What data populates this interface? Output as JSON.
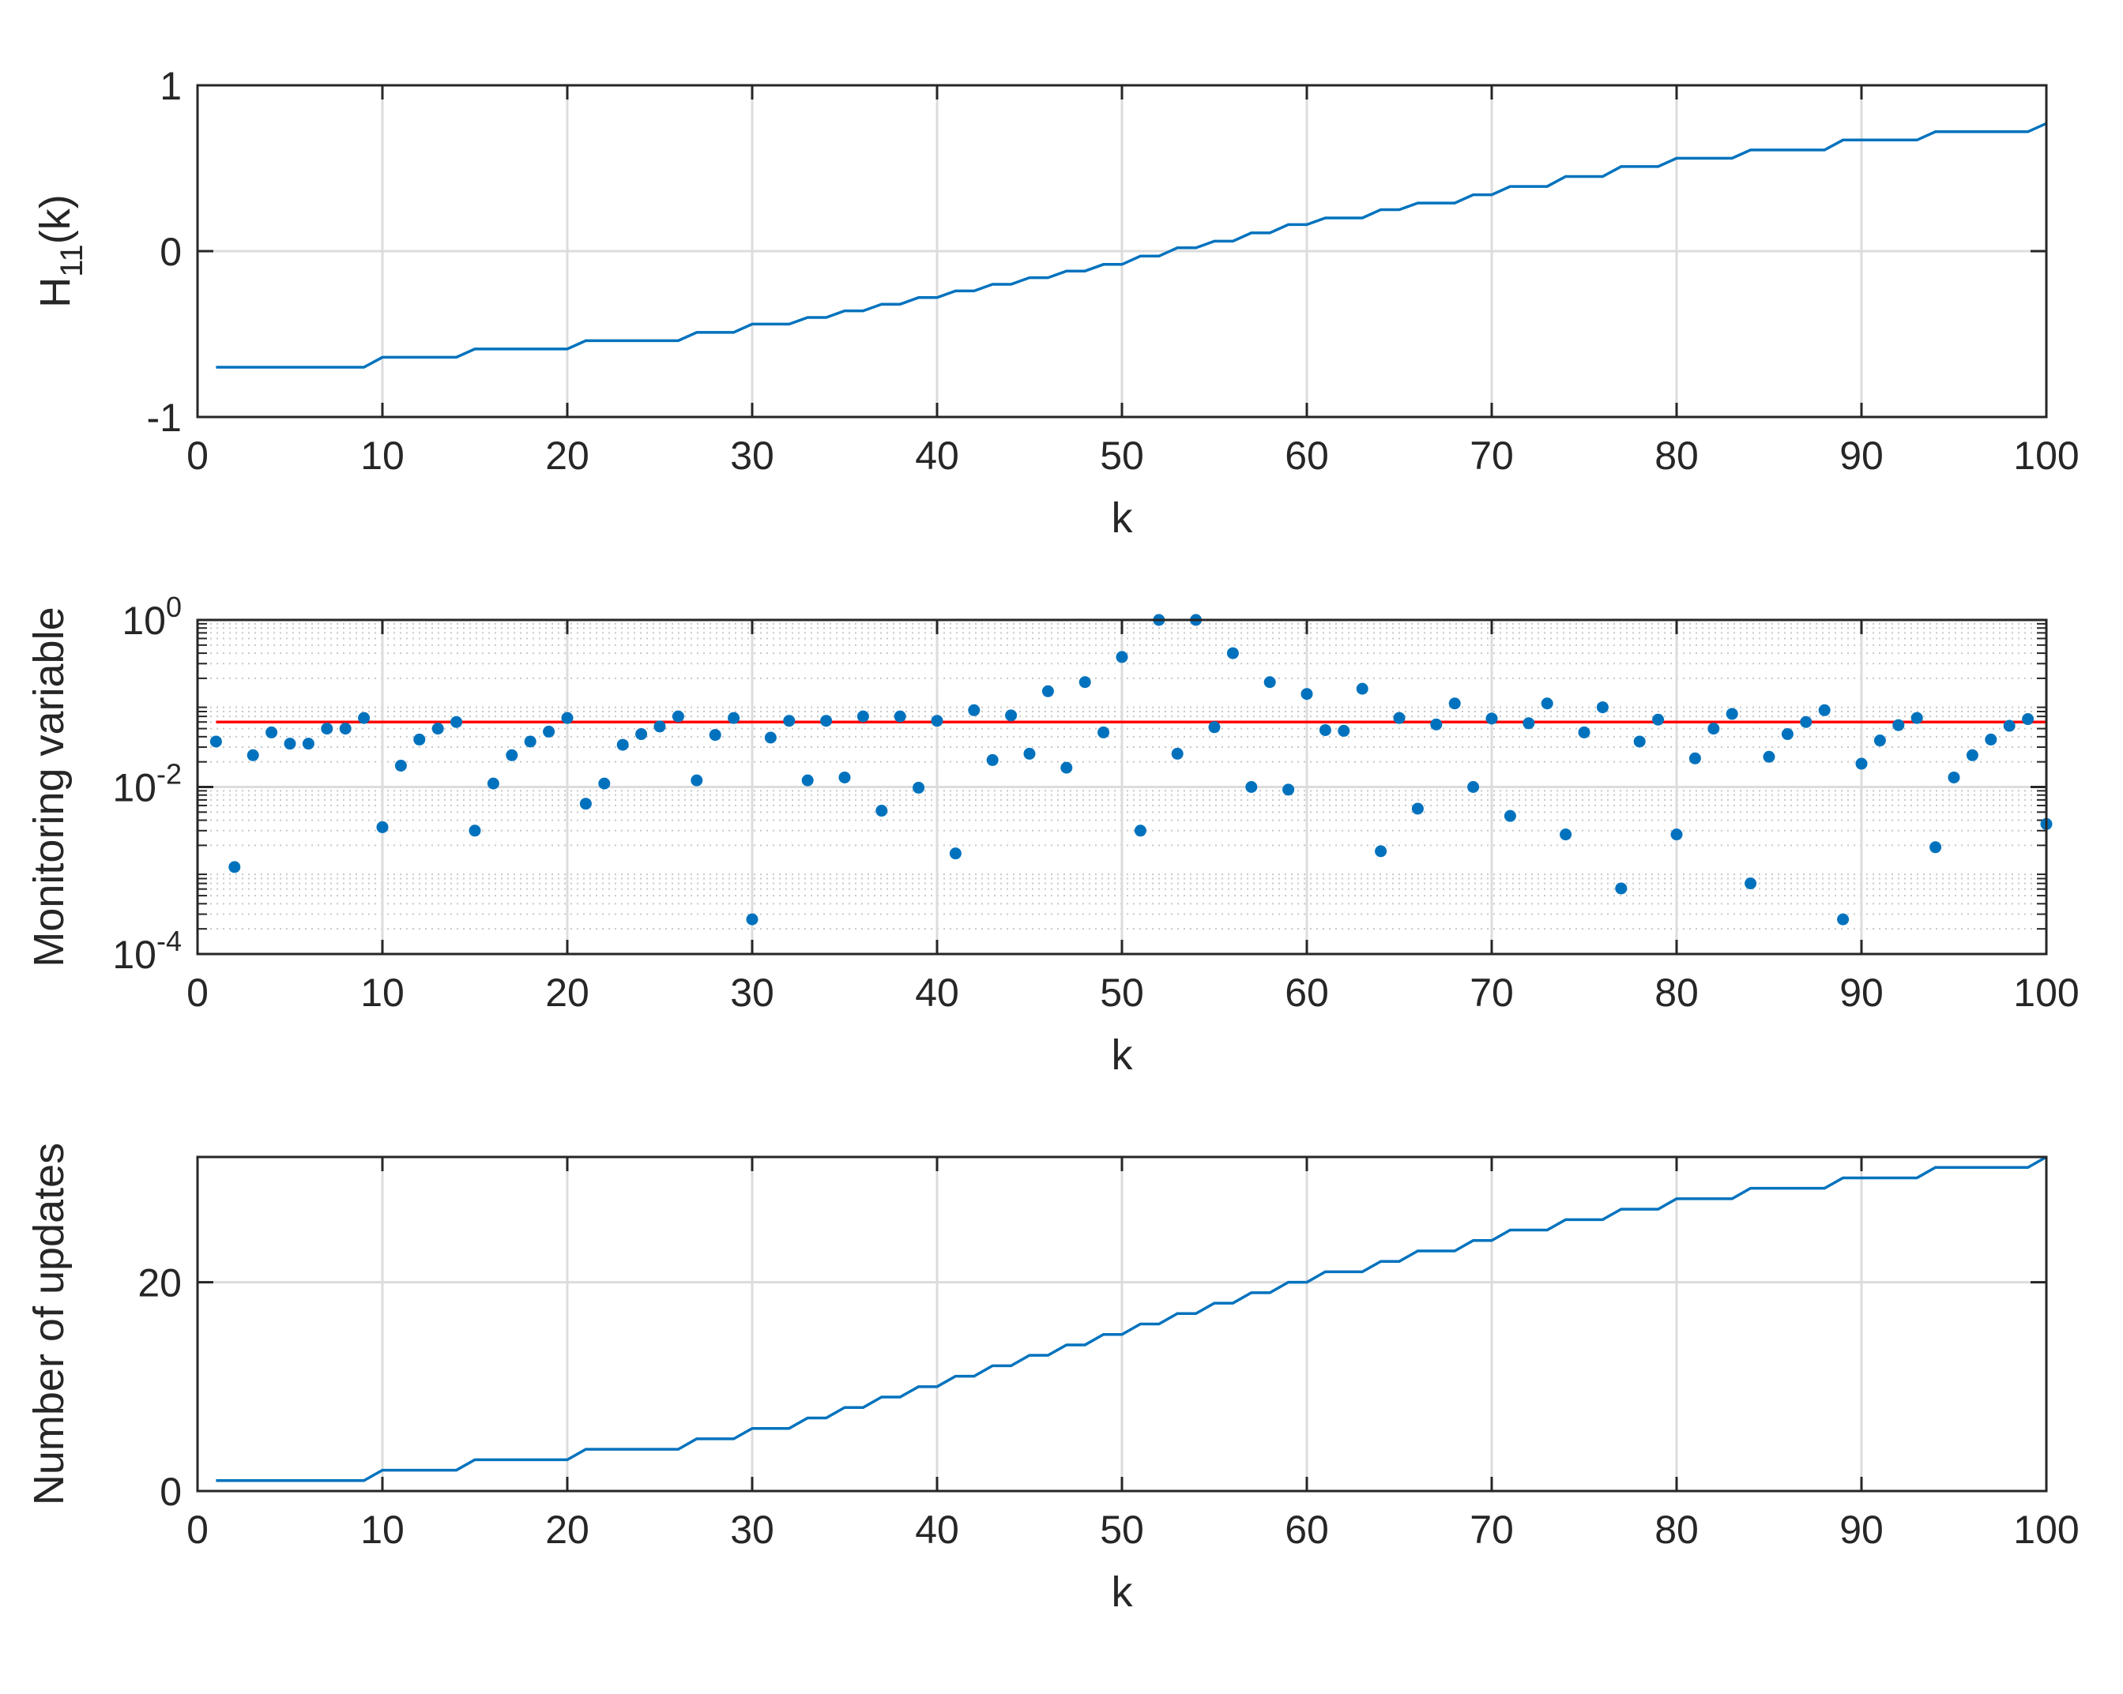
{
  "chart_data": [
    {
      "type": "line",
      "xlabel": "k",
      "ylabel": "H",
      "ylabel_sub": "11",
      "ylabel_suffix": "(k)",
      "xlim": [
        0,
        100
      ],
      "ylim": [
        -1,
        1
      ],
      "xticks": [
        0,
        10,
        20,
        30,
        40,
        50,
        60,
        70,
        80,
        90,
        100
      ],
      "yticks": [
        -1,
        0,
        1
      ],
      "ytick_labels": [
        "-1",
        "0",
        "1"
      ],
      "grid": true,
      "color": "#0072BD",
      "series": [
        {
          "values": [
            -0.7,
            -0.7,
            -0.7,
            -0.7,
            -0.7,
            -0.7,
            -0.7,
            -0.7,
            -0.7,
            -0.64,
            -0.64,
            -0.64,
            -0.64,
            -0.64,
            -0.59,
            -0.59,
            -0.59,
            -0.59,
            -0.59,
            -0.59,
            -0.54,
            -0.54,
            -0.54,
            -0.54,
            -0.54,
            -0.54,
            -0.49,
            -0.49,
            -0.49,
            -0.44,
            -0.44,
            -0.44,
            -0.4,
            -0.4,
            -0.36,
            -0.36,
            -0.32,
            -0.32,
            -0.28,
            -0.28,
            -0.24,
            -0.24,
            -0.2,
            -0.2,
            -0.16,
            -0.16,
            -0.12,
            -0.12,
            -0.08,
            -0.08,
            -0.03,
            -0.03,
            0.02,
            0.02,
            0.06,
            0.06,
            0.11,
            0.11,
            0.16,
            0.16,
            0.2,
            0.2,
            0.2,
            0.25,
            0.25,
            0.29,
            0.29,
            0.29,
            0.34,
            0.34,
            0.39,
            0.39,
            0.39,
            0.45,
            0.45,
            0.45,
            0.51,
            0.51,
            0.51,
            0.56,
            0.56,
            0.56,
            0.56,
            0.61,
            0.61,
            0.61,
            0.61,
            0.61,
            0.67,
            0.67,
            0.67,
            0.67,
            0.67,
            0.72,
            0.72,
            0.72,
            0.72,
            0.72,
            0.72,
            0.77
          ]
        }
      ]
    },
    {
      "type": "scatter",
      "xlabel": "k",
      "ylabel": "Monitoring variable",
      "xlim": [
        0,
        100
      ],
      "ylim": [
        0.0001,
        1
      ],
      "yscale": "log",
      "xticks": [
        0,
        10,
        20,
        30,
        40,
        50,
        60,
        70,
        80,
        90,
        100
      ],
      "yticks": [
        0.0001,
        0.01,
        1
      ],
      "ytick_labels": [
        {
          "base": "10",
          "exp": "-4"
        },
        {
          "base": "10",
          "exp": "-2"
        },
        {
          "base": "10",
          "exp": "0"
        }
      ],
      "grid": true,
      "minor_grid": true,
      "color": "#0072BD",
      "threshold": {
        "value": 0.06,
        "color": "#FF0000"
      },
      "series": [
        {
          "values": [
            0.035,
            0.0011,
            0.024,
            0.045,
            0.033,
            0.033,
            0.05,
            0.05,
            0.067,
            0.0033,
            0.018,
            0.037,
            0.05,
            0.06,
            0.003,
            0.011,
            0.024,
            0.035,
            0.046,
            0.067,
            0.0063,
            0.011,
            0.032,
            0.043,
            0.053,
            0.07,
            0.012,
            0.042,
            0.067,
            0.00026,
            0.039,
            0.062,
            0.012,
            0.062,
            0.013,
            0.07,
            0.0052,
            0.07,
            0.0098,
            0.062,
            0.0016,
            0.083,
            0.021,
            0.072,
            0.025,
            0.14,
            0.017,
            0.18,
            0.045,
            0.36,
            0.003,
            1.0,
            0.025,
            1.0,
            0.052,
            0.4,
            0.01,
            0.18,
            0.0093,
            0.13,
            0.048,
            0.047,
            0.15,
            0.0017,
            0.067,
            0.0055,
            0.056,
            0.1,
            0.01,
            0.066,
            0.0045,
            0.058,
            0.1,
            0.0027,
            0.045,
            0.09,
            0.00061,
            0.035,
            0.064,
            0.0027,
            0.022,
            0.05,
            0.075,
            0.0007,
            0.023,
            0.043,
            0.06,
            0.083,
            0.00026,
            0.019,
            0.036,
            0.055,
            0.067,
            0.0019,
            0.013,
            0.024,
            0.037,
            0.054,
            0.065,
            0.0036
          ]
        }
      ]
    },
    {
      "type": "line",
      "xlabel": "k",
      "ylabel": "Number of updates",
      "xlim": [
        0,
        100
      ],
      "ylim": [
        0,
        32
      ],
      "xticks": [
        0,
        10,
        20,
        30,
        40,
        50,
        60,
        70,
        80,
        90,
        100
      ],
      "yticks": [
        0,
        20
      ],
      "ytick_labels": [
        "0",
        "20"
      ],
      "grid": true,
      "color": "#0072BD",
      "series": [
        {
          "values": [
            1,
            1,
            1,
            1,
            1,
            1,
            1,
            1,
            1,
            2,
            2,
            2,
            2,
            2,
            3,
            3,
            3,
            3,
            3,
            3,
            4,
            4,
            4,
            4,
            4,
            4,
            5,
            5,
            5,
            6,
            6,
            6,
            7,
            7,
            8,
            8,
            9,
            9,
            10,
            10,
            11,
            11,
            12,
            12,
            13,
            13,
            14,
            14,
            15,
            15,
            16,
            16,
            17,
            17,
            18,
            18,
            19,
            19,
            20,
            20,
            21,
            21,
            21,
            22,
            22,
            23,
            23,
            23,
            24,
            24,
            25,
            25,
            25,
            26,
            26,
            26,
            27,
            27,
            27,
            28,
            28,
            28,
            28,
            29,
            29,
            29,
            29,
            29,
            30,
            30,
            30,
            30,
            30,
            31,
            31,
            31,
            31,
            31,
            31,
            32
          ]
        }
      ]
    }
  ]
}
